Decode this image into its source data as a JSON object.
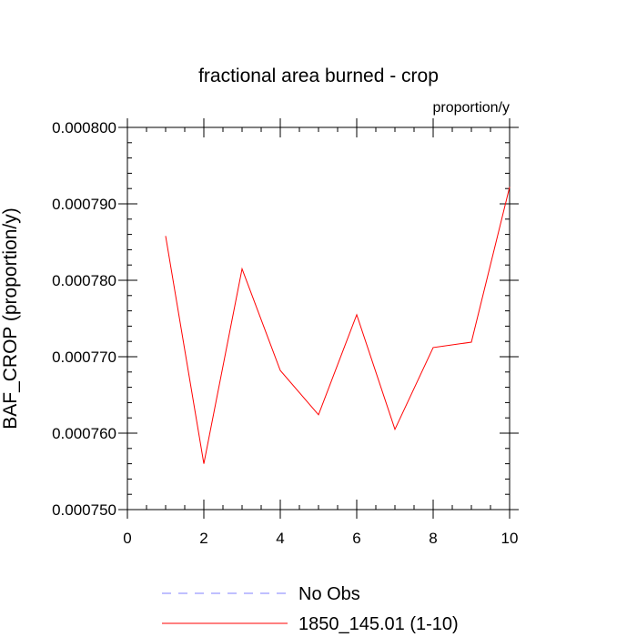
{
  "chart_data": {
    "type": "line",
    "title": "fractional area burned - crop",
    "units_label": "proportion/y",
    "ylabel": "BAF_CROP  (proportion/y)",
    "xlabel": "",
    "xlim": [
      0,
      10
    ],
    "ylim": [
      0.00075,
      0.0008
    ],
    "x_ticks": [
      0,
      2,
      4,
      6,
      8,
      10
    ],
    "x_tick_labels": [
      "0",
      "2",
      "4",
      "6",
      "8",
      "10"
    ],
    "y_ticks": [
      0.00075,
      0.00076,
      0.00077,
      0.00078,
      0.00079,
      0.0008
    ],
    "y_tick_labels": [
      "0.000750",
      "0.000760",
      "0.000770",
      "0.000780",
      "0.000790",
      "0.000800"
    ],
    "grid": false,
    "legend_position": "bottom",
    "series": [
      {
        "name": "1850_145.01 (1-10)",
        "color": "#ff0000",
        "style": "solid",
        "x": [
          1,
          2,
          3,
          4,
          5,
          6,
          7,
          8,
          9,
          10
        ],
        "y": [
          0.0007858,
          0.000756,
          0.0007815,
          0.0007682,
          0.0007624,
          0.0007755,
          0.0007605,
          0.0007712,
          0.0007719,
          0.0007922
        ]
      }
    ],
    "legend": [
      {
        "label": "No Obs",
        "color": "#8080ff",
        "style": "dashed"
      },
      {
        "label": "1850_145.01 (1-10)",
        "color": "#ff0000",
        "style": "solid"
      }
    ]
  }
}
